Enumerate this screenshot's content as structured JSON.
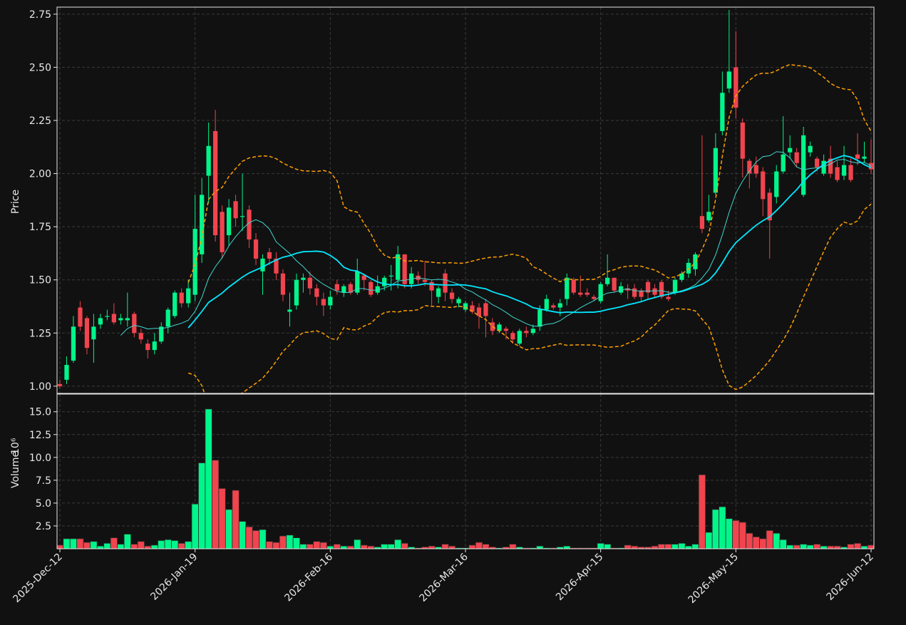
{
  "chart_data": {
    "type": "candlestick",
    "categories": [
      "2025-Dec-12",
      null,
      null,
      null,
      null,
      null,
      null,
      null,
      null,
      null,
      null,
      null,
      null,
      null,
      null,
      null,
      null,
      null,
      null,
      null,
      "2026-Jan-19",
      null,
      null,
      null,
      null,
      null,
      null,
      null,
      null,
      null,
      null,
      null,
      null,
      null,
      null,
      null,
      null,
      null,
      null,
      null,
      "2026-Feb-16",
      null,
      null,
      null,
      null,
      null,
      null,
      null,
      null,
      null,
      null,
      null,
      null,
      null,
      null,
      null,
      null,
      null,
      null,
      null,
      "2026-Mar-16",
      null,
      null,
      null,
      null,
      null,
      null,
      null,
      null,
      null,
      null,
      null,
      null,
      null,
      null,
      null,
      null,
      null,
      null,
      null,
      "2026-Apr-15",
      null,
      null,
      null,
      null,
      null,
      null,
      null,
      null,
      null,
      null,
      null,
      null,
      null,
      null,
      null,
      null,
      null,
      null,
      null,
      "2026-May-15",
      null,
      null,
      null,
      null,
      null,
      null,
      null,
      null,
      null,
      null,
      null,
      null,
      null,
      null,
      null,
      null,
      null,
      null,
      null,
      "2026-Jun-12"
    ],
    "open": [
      1.01,
      1.03,
      1.12,
      1.37,
      1.32,
      1.22,
      1.29,
      1.33,
      1.34,
      1.31,
      1.31,
      1.34,
      1.25,
      1.2,
      1.17,
      1.21,
      1.28,
      1.33,
      1.44,
      1.39,
      1.43,
      1.62,
      1.99,
      2.2,
      1.82,
      1.71,
      1.87,
      1.8,
      1.83,
      1.69,
      1.54,
      1.63,
      1.6,
      1.53,
      1.35,
      1.38,
      1.5,
      1.51,
      1.46,
      1.41,
      1.38,
      1.48,
      1.44,
      1.48,
      1.44,
      1.52,
      1.49,
      1.44,
      1.47,
      1.52,
      1.5,
      1.62,
      1.48,
      1.52,
      1.5,
      1.49,
      1.42,
      1.53,
      1.44,
      1.39,
      1.36,
      1.38,
      1.37,
      1.39,
      1.3,
      1.26,
      1.27,
      1.25,
      1.2,
      1.26,
      1.25,
      1.28,
      1.36,
      1.38,
      1.37,
      1.41,
      1.5,
      1.44,
      1.44,
      1.42,
      1.4,
      1.48,
      1.51,
      1.44,
      1.46,
      1.46,
      1.45,
      1.49,
      1.46,
      1.49,
      1.42,
      1.44,
      1.5,
      1.53,
      1.55,
      1.8,
      1.78,
      1.91,
      2.2,
      2.4,
      2.5,
      2.24,
      2.06,
      2.04,
      2.01,
      1.91,
      1.89,
      2.01,
      2.1,
      2.1,
      1.9,
      2.1,
      2.07,
      2.0,
      2.07,
      2.03,
      1.99,
      2.04,
      2.09,
      2.07,
      2.05
    ],
    "high": [
      1.03,
      1.14,
      1.33,
      1.4,
      1.33,
      1.34,
      1.34,
      1.36,
      1.39,
      1.34,
      1.44,
      1.35,
      1.27,
      1.22,
      1.25,
      1.3,
      1.37,
      1.45,
      1.46,
      1.5,
      1.9,
      1.98,
      2.24,
      2.3,
      1.85,
      1.88,
      1.9,
      2.0,
      1.85,
      1.72,
      1.62,
      1.65,
      1.63,
      1.55,
      1.44,
      1.53,
      1.53,
      1.54,
      1.48,
      1.44,
      1.45,
      1.5,
      1.48,
      1.49,
      1.6,
      1.53,
      1.5,
      1.52,
      1.52,
      1.57,
      1.66,
      1.62,
      1.56,
      1.54,
      1.59,
      1.5,
      1.47,
      1.55,
      1.46,
      1.42,
      1.4,
      1.4,
      1.39,
      1.41,
      1.32,
      1.3,
      1.28,
      1.26,
      1.27,
      1.28,
      1.29,
      1.38,
      1.43,
      1.39,
      1.41,
      1.53,
      1.51,
      1.52,
      1.46,
      1.43,
      1.49,
      1.62,
      1.51,
      1.49,
      1.48,
      1.48,
      1.46,
      1.5,
      1.48,
      1.5,
      1.45,
      1.51,
      1.54,
      1.6,
      1.63,
      2.18,
      1.9,
      2.19,
      2.48,
      2.77,
      2.67,
      2.26,
      2.07,
      2.08,
      2.03,
      1.93,
      2.04,
      2.27,
      2.18,
      2.12,
      2.22,
      2.15,
      2.08,
      2.09,
      2.13,
      2.06,
      2.13,
      2.07,
      2.19,
      2.15,
      2.16
    ],
    "low": [
      0.99,
      1.01,
      1.11,
      1.26,
      1.15,
      1.11,
      1.27,
      1.31,
      1.29,
      1.29,
      1.28,
      1.23,
      1.2,
      1.13,
      1.15,
      1.2,
      1.25,
      1.32,
      1.37,
      1.37,
      1.4,
      1.58,
      1.86,
      1.68,
      1.6,
      1.66,
      1.75,
      1.73,
      1.65,
      1.57,
      1.43,
      1.57,
      1.5,
      1.4,
      1.28,
      1.36,
      1.44,
      1.43,
      1.38,
      1.33,
      1.36,
      1.43,
      1.42,
      1.43,
      1.43,
      1.45,
      1.42,
      1.43,
      1.45,
      1.45,
      1.46,
      1.46,
      1.46,
      1.48,
      1.47,
      1.38,
      1.39,
      1.4,
      1.39,
      1.37,
      1.35,
      1.34,
      1.27,
      1.23,
      1.24,
      1.25,
      1.22,
      1.2,
      1.19,
      1.23,
      1.24,
      1.26,
      1.35,
      1.36,
      1.33,
      1.38,
      1.43,
      1.42,
      1.42,
      1.4,
      1.39,
      1.47,
      1.44,
      1.43,
      1.41,
      1.41,
      1.4,
      1.41,
      1.42,
      1.41,
      1.4,
      1.43,
      1.49,
      1.51,
      1.52,
      1.72,
      1.77,
      1.9,
      2.18,
      2.38,
      2.26,
      1.98,
      1.93,
      1.98,
      1.8,
      1.6,
      1.86,
      2.0,
      2.07,
      2.03,
      1.89,
      2.08,
      2.01,
      1.99,
      1.98,
      1.96,
      1.97,
      1.96,
      2.04,
      2.05,
      2.0
    ],
    "close": [
      1.0,
      1.1,
      1.28,
      1.28,
      1.18,
      1.28,
      1.32,
      1.33,
      1.3,
      1.32,
      1.32,
      1.25,
      1.22,
      1.17,
      1.21,
      1.28,
      1.36,
      1.44,
      1.39,
      1.46,
      1.74,
      1.9,
      2.13,
      1.71,
      1.63,
      1.84,
      1.79,
      1.8,
      1.69,
      1.6,
      1.6,
      1.6,
      1.53,
      1.43,
      1.36,
      1.5,
      1.51,
      1.46,
      1.42,
      1.38,
      1.42,
      1.45,
      1.47,
      1.44,
      1.54,
      1.5,
      1.43,
      1.47,
      1.51,
      1.52,
      1.62,
      1.48,
      1.53,
      1.5,
      1.49,
      1.45,
      1.46,
      1.44,
      1.41,
      1.41,
      1.39,
      1.35,
      1.33,
      1.33,
      1.26,
      1.29,
      1.26,
      1.22,
      1.26,
      1.25,
      1.27,
      1.36,
      1.41,
      1.37,
      1.39,
      1.51,
      1.44,
      1.43,
      1.43,
      1.41,
      1.48,
      1.51,
      1.45,
      1.47,
      1.45,
      1.42,
      1.42,
      1.44,
      1.43,
      1.42,
      1.41,
      1.5,
      1.53,
      1.58,
      1.62,
      1.74,
      1.82,
      2.12,
      2.38,
      2.48,
      2.31,
      2.07,
      2.0,
      2.0,
      1.88,
      1.78,
      2.01,
      2.09,
      2.12,
      2.05,
      2.18,
      2.13,
      2.03,
      2.06,
      2.0,
      1.97,
      2.04,
      1.97,
      2.07,
      2.08,
      2.02
    ],
    "volume": [
      0.4,
      1.1,
      1.1,
      1.1,
      0.7,
      0.8,
      0.3,
      0.6,
      1.2,
      0.5,
      1.6,
      0.5,
      0.8,
      0.3,
      0.4,
      0.9,
      1.0,
      0.9,
      0.6,
      0.8,
      4.9,
      9.4,
      15.3,
      9.7,
      6.6,
      4.3,
      6.4,
      3.0,
      2.4,
      2.0,
      2.1,
      0.8,
      0.7,
      1.4,
      1.5,
      1.2,
      0.5,
      0.5,
      0.8,
      0.7,
      0.3,
      0.5,
      0.3,
      0.3,
      1.0,
      0.4,
      0.3,
      0.2,
      0.5,
      0.5,
      1.0,
      0.6,
      0.2,
      0.1,
      0.2,
      0.3,
      0.2,
      0.5,
      0.3,
      0.1,
      0.1,
      0.4,
      0.7,
      0.5,
      0.2,
      0.1,
      0.2,
      0.5,
      0.2,
      0.1,
      0.1,
      0.3,
      0.1,
      0.1,
      0.2,
      0.3,
      0.1,
      0.1,
      0.1,
      0.1,
      0.6,
      0.5,
      0.1,
      0.1,
      0.4,
      0.3,
      0.2,
      0.2,
      0.3,
      0.5,
      0.5,
      0.5,
      0.6,
      0.3,
      0.5,
      8.1,
      1.8,
      4.3,
      4.6,
      3.3,
      3.1,
      2.9,
      1.7,
      1.3,
      1.1,
      2.0,
      1.7,
      1.0,
      0.4,
      0.4,
      0.5,
      0.4,
      0.5,
      0.3,
      0.3,
      0.3,
      0.2,
      0.5,
      0.6,
      0.3,
      0.4
    ],
    "up_color": "#00f58a",
    "down_color": "#f0444e",
    "ylabel": "Price",
    "ylim": [
      0.966,
      2.783
    ],
    "yticks": [
      {
        "value": 1.0,
        "label": "1.00"
      },
      1.25,
      {
        "value": 1.5,
        "label": "1.50"
      },
      1.75,
      {
        "value": 2.0,
        "label": "2.00"
      },
      2.25,
      {
        "value": 2.5,
        "label": "2.50"
      },
      2.75
    ],
    "volume_ylabel": "Volume",
    "volume_scale_label": "10⁶",
    "volume_ylim": [
      0,
      16.93
    ],
    "volume_yticks": [
      2.5,
      {
        "value": 5.0,
        "label": "5.0"
      },
      7.5,
      {
        "value": 10.0,
        "label": "10.0"
      },
      12.5,
      {
        "value": 15.0,
        "label": "15.0"
      }
    ],
    "moving_averages": [
      {
        "window": 10,
        "color": "#40d8d0"
      },
      {
        "window": 20,
        "color": "#00e8ff"
      }
    ],
    "bollinger": {
      "window": 20,
      "num_std": 2,
      "color": "#ffa000"
    },
    "grid": true
  }
}
